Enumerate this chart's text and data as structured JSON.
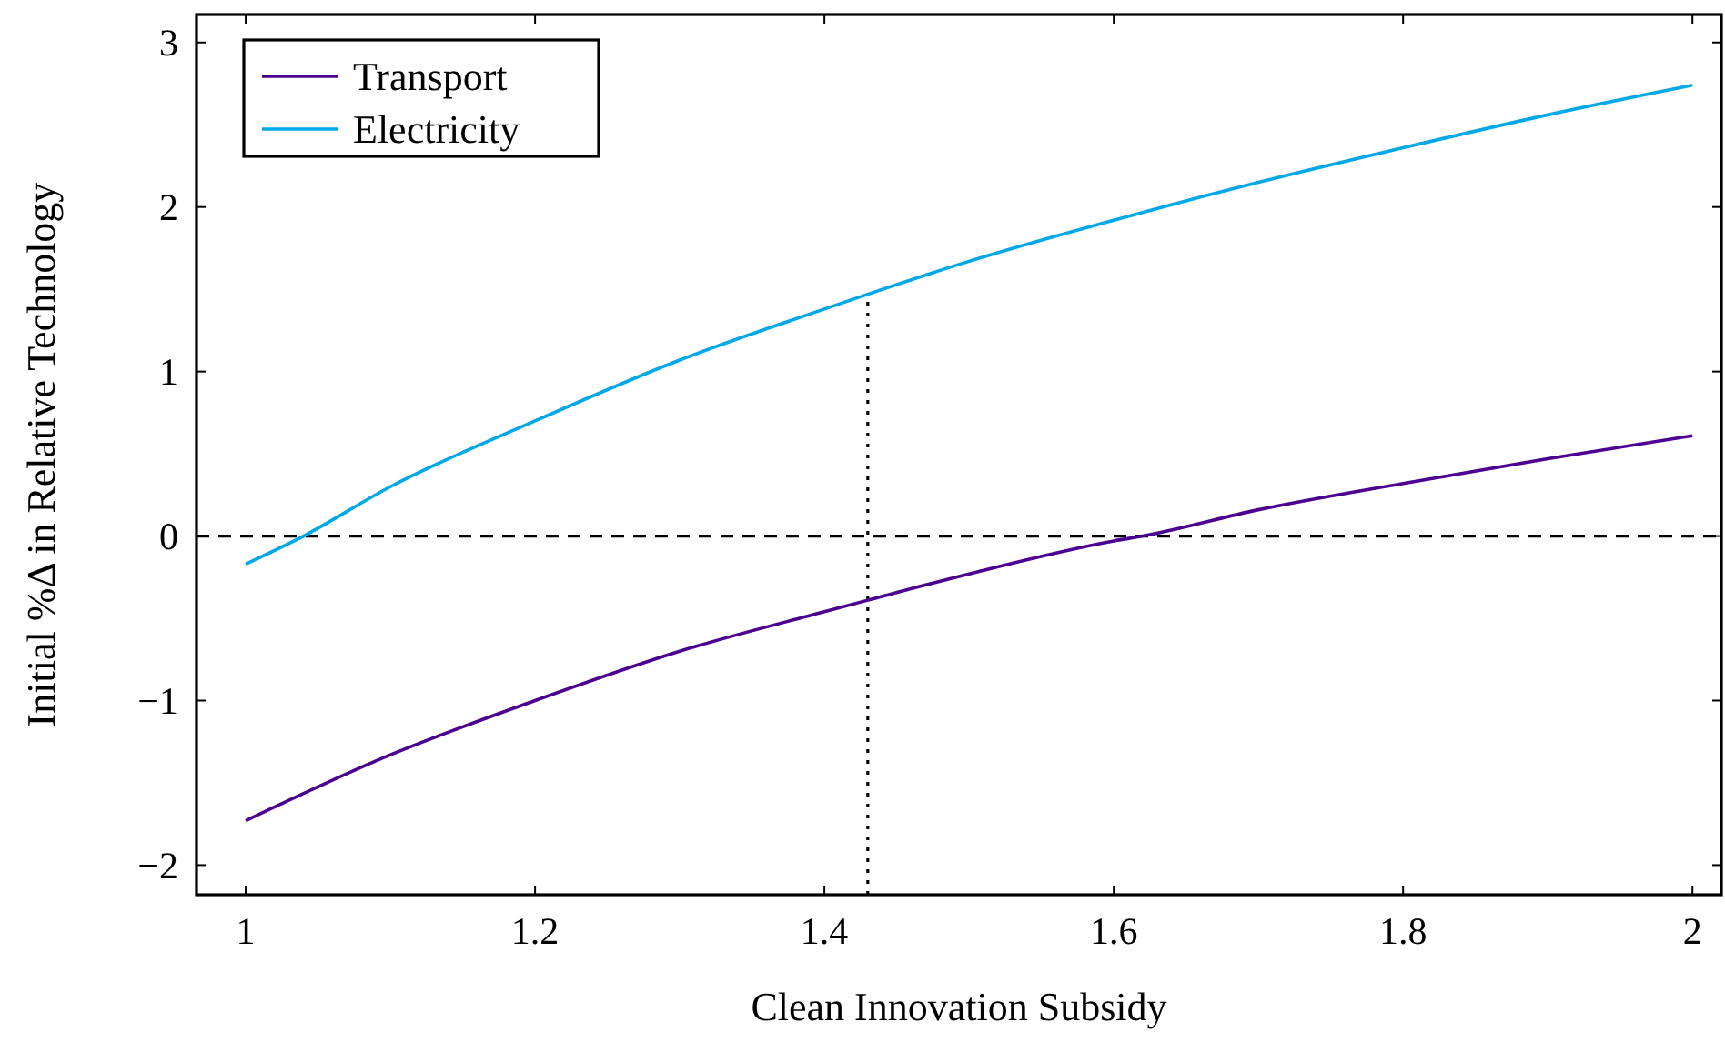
{
  "chart_data": {
    "type": "line",
    "xlabel": "Clean Innovation Subsidy",
    "ylabel": "Initial %Δ in Relative Technology",
    "xlim": [
      0.966,
      2.02
    ],
    "ylim": [
      -2.18,
      3.17
    ],
    "xticks": [
      1,
      1.2,
      1.4,
      1.6,
      1.8,
      2
    ],
    "yticks": [
      {
        "value": -2,
        "label": "−2"
      },
      {
        "value": -1,
        "label": "−1"
      },
      0,
      1,
      2,
      3
    ],
    "grid": false,
    "legend": "top left",
    "line_style": "solid",
    "marker": "none",
    "series": [
      {
        "name": "Transport",
        "color": "#4b0092",
        "x": [
          1,
          1.1,
          1.2,
          1.3,
          1.4,
          1.43,
          1.5,
          1.6,
          1.62,
          1.7,
          1.8,
          1.9,
          2
        ],
        "values": [
          -1.73,
          -1.33,
          -1.0,
          -0.7,
          -0.46,
          -0.39,
          -0.23,
          -0.03,
          0,
          0.16,
          0.32,
          0.47,
          0.61
        ]
      },
      {
        "name": "Electricity",
        "color": "#00a8e8",
        "x": [
          1,
          1.04,
          1.1,
          1.2,
          1.3,
          1.4,
          1.43,
          1.5,
          1.6,
          1.7,
          1.8,
          1.9,
          2
        ],
        "values": [
          -0.17,
          0,
          0.3,
          0.7,
          1.07,
          1.38,
          1.47,
          1.67,
          1.92,
          2.15,
          2.36,
          2.56,
          2.74
        ]
      }
    ],
    "ref_lines": [
      {
        "axis": "y",
        "value": 0,
        "color": "#000000",
        "line_style": "dashed"
      },
      {
        "axis": "x",
        "value": 1.43,
        "color": "#000000",
        "line_style": "dotted"
      }
    ]
  }
}
